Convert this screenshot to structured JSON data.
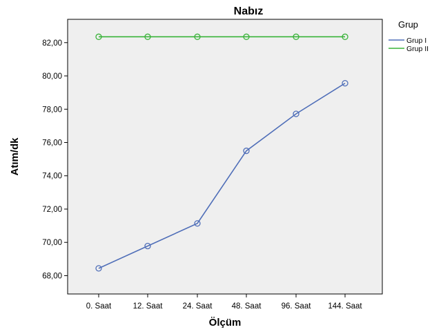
{
  "chart_data": {
    "type": "line",
    "title": "Nabız",
    "xlabel": "Ölçüm",
    "ylabel": "Atım/dk",
    "categories": [
      "0. Saat",
      "12. Saat",
      "24. Saat",
      "48. Saat",
      "96. Saat",
      "144. Saat"
    ],
    "yticks": [
      68,
      70,
      72,
      74,
      76,
      78,
      80,
      82
    ],
    "ytick_labels": [
      "68,00",
      "70,00",
      "72,00",
      "74,00",
      "76,00",
      "78,00",
      "80,00",
      "82,00"
    ],
    "ylim": [
      66.9,
      83.4
    ],
    "grid": false,
    "legend": {
      "title": "Grup",
      "placement": "top-right, outside plot"
    },
    "plot_background": "#efefef",
    "series": [
      {
        "name": "Grup I",
        "color": "#4f6eb8",
        "marker": "open-circle",
        "values": [
          68.44,
          69.78,
          71.14,
          75.5,
          77.72,
          79.56
        ]
      },
      {
        "name": "Grup II",
        "color": "#39b339",
        "marker": "open-circle",
        "values": [
          82.35,
          82.35,
          82.35,
          82.35,
          82.35,
          82.35
        ]
      }
    ]
  }
}
